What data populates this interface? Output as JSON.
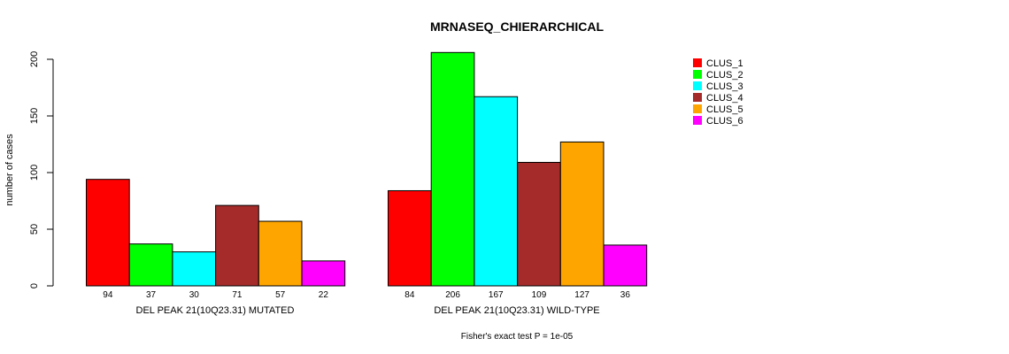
{
  "chart_data": {
    "type": "bar",
    "title": "MRNASEQ_CHIERARCHICAL",
    "ylabel": "number of cases",
    "ylim": [
      0,
      200
    ],
    "yticks": [
      0,
      50,
      100,
      150,
      200
    ],
    "footnote": "Fisher's exact test P = 1e-05",
    "legend": {
      "placement": "top-right",
      "entries": [
        "CLUS_1",
        "CLUS_2",
        "CLUS_3",
        "CLUS_4",
        "CLUS_5",
        "CLUS_6"
      ]
    },
    "colors": [
      "#ff0000",
      "#00ff00",
      "#00ffff",
      "#a52a2a",
      "#ffa500",
      "#ff00ff"
    ],
    "groups": [
      {
        "label": "DEL PEAK 21(10Q23.31) MUTATED",
        "values": [
          94,
          37,
          30,
          71,
          57,
          22
        ]
      },
      {
        "label": "DEL PEAK 21(10Q23.31) WILD-TYPE",
        "values": [
          84,
          206,
          167,
          109,
          127,
          36
        ]
      }
    ]
  }
}
